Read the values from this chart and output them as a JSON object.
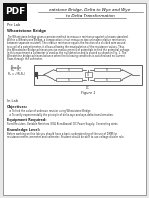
{
  "title_line1": "eatstone Bridge, Delta to Wye and Wye",
  "title_line2": "to Delta Transformation",
  "pre_lab_label": "Pre Lab",
  "section1_title": "Wheatstone Bridge",
  "body_lines": [
    "The Wheatstone bridge gives a precise method to measure resistance against a known standard.",
    "Within a Wheatstone Bridge, a comparative circuit measures two unknown relative resistances",
    "between separate resistors. The relative resistance equals the fraction of a divided wire wound",
    "to a coil of a potentiometer, it allows allowing the manipulation of the resistance values. Thus",
    "the Wheatstone Bridge achieves precise measurements of potentials to find the potential voltage.",
    "In this experiment a voltmeter is used as the null detector and is placed as shown in Fig. 1. The",
    "Wheatstone bridge achieves balance when the following conditions is satisfied and no current",
    "flows through the voltmeter."
  ],
  "figure_label": "Figure 1",
  "in_lab_label": "In Lab",
  "objectives_title": "Objectives:",
  "obj1": "To find the value of unknown resistor using Wheatstone Bridge.",
  "obj2": "To verify experimentally the principle of delta-wye and wye-delta transformation.",
  "equip_title": "Equipment Required:",
  "equip_text": "Fixed Resistors, Variable Resistors (3KΩ Breadboard) DC Power Supply, Connecting wires",
  "knowledge_title": "Knowledge Level:",
  "knowledge_line1": "Before working on this lab you should have a basic understanding of the use of DMM for",
  "knowledge_line2": "resistance meter, ammeter and voltmeter. Student should be able to use voltage divider rule.",
  "pdf_label": "PDF",
  "background_color": "#e8e8e8",
  "page_color": "#ffffff",
  "text_color": "#2a2a2a",
  "title_color": "#111111",
  "pdf_bg": "#111111",
  "pdf_text": "#ffffff",
  "border_color": "#888888",
  "circuit_color": "#444444"
}
